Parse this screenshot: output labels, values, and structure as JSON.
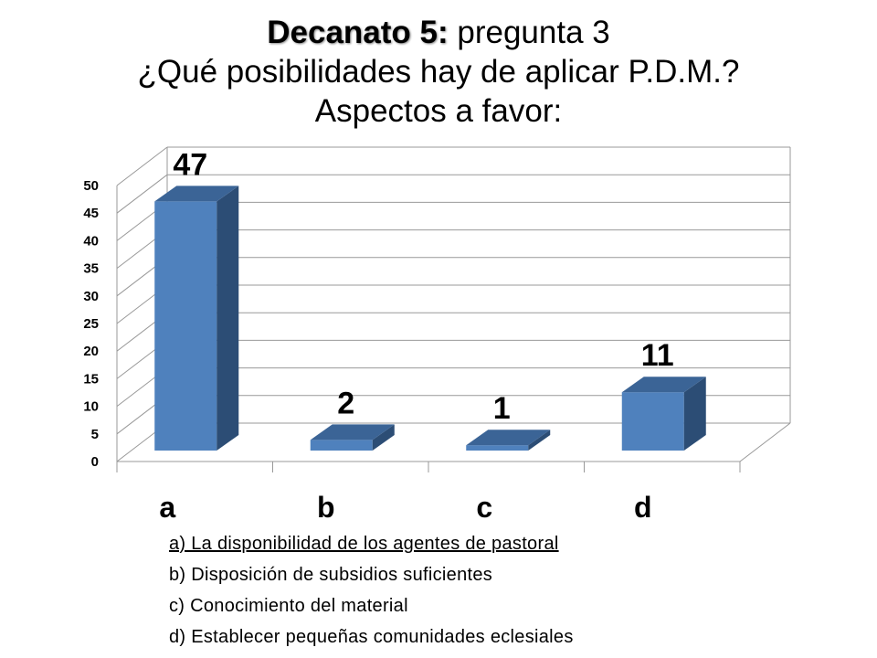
{
  "title": {
    "bold": "Decanato 5:",
    "rest": " pregunta 3",
    "line2": "¿Qué posibilidades hay de aplicar P.D.M.?",
    "line3": "Aspectos a favor:"
  },
  "chart_data": {
    "type": "bar",
    "categories": [
      "a",
      "b",
      "c",
      "d"
    ],
    "values": [
      47,
      2,
      1,
      11
    ],
    "data_labels": [
      "47",
      "2",
      "1",
      "11"
    ],
    "ylim": [
      0,
      50
    ],
    "yticks": [
      "0",
      "5",
      "10",
      "15",
      "20",
      "25",
      "30",
      "35",
      "40",
      "45",
      "50"
    ],
    "grid": true,
    "colors": {
      "bar_front": "#4f81bd",
      "bar_side": "#2c4d75",
      "bar_top": "#3b6496",
      "grid": "#999999"
    }
  },
  "legend": {
    "items": [
      "a) La disponibilidad de los agentes de pastoral",
      "b) Disposición de subsidios suficientes",
      "c) Conocimiento del material",
      "d) Establecer pequeñas comunidades eclesiales"
    ]
  }
}
